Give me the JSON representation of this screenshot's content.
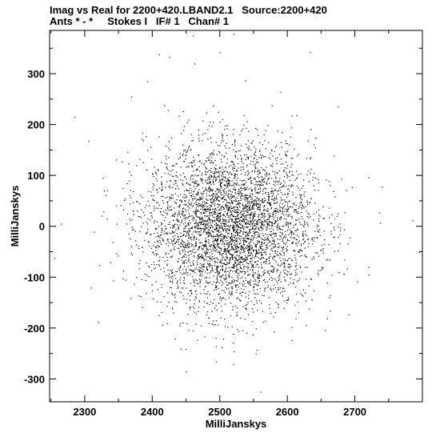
{
  "header": {
    "line1": "Imag vs Real for 2200+420.LBAND2.1   Source:2200+420",
    "line2": "Ants * - *     Stokes I   IF# 1   Chan# 1"
  },
  "chart_data": {
    "type": "scatter",
    "title": "Imag vs Real for 2200+420.LBAND2.1   Source:2200+420",
    "subtitle": "Ants * - *     Stokes I   IF# 1   Chan# 1",
    "xlabel": "MilliJanskys",
    "ylabel": "MilliJanskys",
    "xlim": [
      2248,
      2800
    ],
    "ylim": [
      -345,
      385
    ],
    "xticks": [
      2300,
      2400,
      2500,
      2600,
      2700
    ],
    "yticks": [
      -300,
      -200,
      -100,
      0,
      100,
      200,
      300
    ],
    "point_color": "#000000",
    "distribution": {
      "center_x": 2515,
      "center_y": 0,
      "std_x": 62,
      "std_y": 80,
      "count": 4500
    },
    "outliers": [
      {
        "x": 2460,
        "y": 375
      },
      {
        "x": 2520,
        "y": 378
      },
      {
        "x": 2500,
        "y": 342
      },
      {
        "x": 2410,
        "y": 338
      },
      {
        "x": 2425,
        "y": 333
      },
      {
        "x": 2462,
        "y": 320
      },
      {
        "x": 2285,
        "y": 215
      },
      {
        "x": 2255,
        "y": -62
      },
      {
        "x": 2265,
        "y": 5
      },
      {
        "x": 2785,
        "y": 12
      },
      {
        "x": 2795,
        "y": -50
      },
      {
        "x": 2675,
        "y": 235
      },
      {
        "x": 2560,
        "y": -325
      },
      {
        "x": 2450,
        "y": -285
      },
      {
        "x": 2320,
        "y": -188
      },
      {
        "x": 2740,
        "y": 78
      },
      {
        "x": 2720,
        "y": -95
      }
    ]
  }
}
